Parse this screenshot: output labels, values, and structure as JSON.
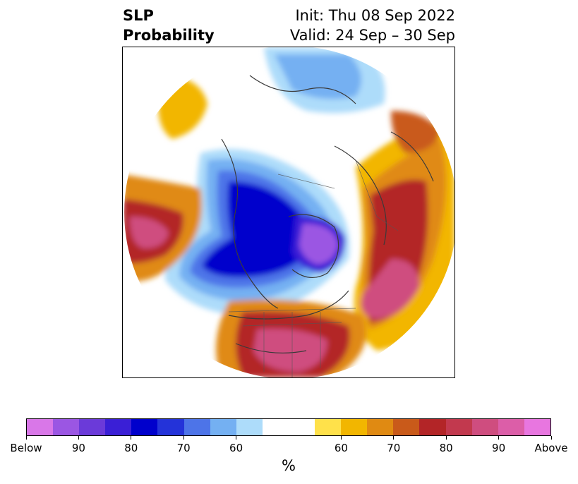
{
  "title": {
    "left_line1": "SLP",
    "left_line2": "Probability",
    "right_line1": "Init: Thu 08 Sep 2022",
    "right_line2": "Valid: 24 Sep – 30 Sep"
  },
  "colorbar": {
    "unit": "%",
    "colors": [
      "#d977e8",
      "#9b56e3",
      "#6b3ad9",
      "#3a1fd6",
      "#0000cc",
      "#2433d9",
      "#4d74e8",
      "#74b0f2",
      "#addcfa",
      "#ffffff",
      "#ffffff",
      "#ffe14a",
      "#f2b600",
      "#e08a12",
      "#c95a1a",
      "#b32527",
      "#c2394e",
      "#cf4d7f",
      "#dc5ea8",
      "#e876e0"
    ],
    "tick_labels": [
      "Below",
      "90",
      "80",
      "70",
      "60",
      "60",
      "70",
      "80",
      "90",
      "Above"
    ]
  },
  "map": {
    "projection": "polar stereographic, North America",
    "features": [
      "coastlines",
      "country borders",
      "state borders"
    ]
  }
}
